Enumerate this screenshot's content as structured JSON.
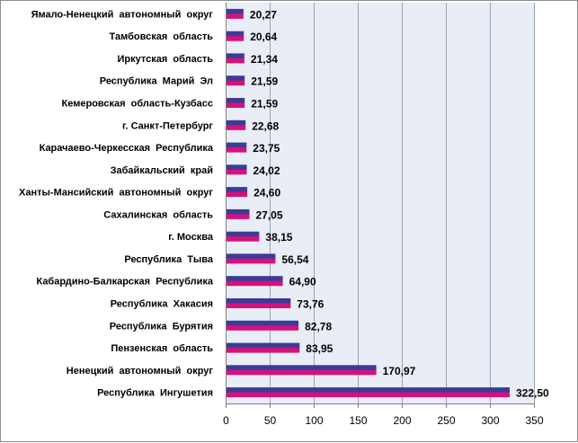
{
  "chart_data": {
    "type": "bar",
    "orientation": "horizontal",
    "categories": [
      "Ямало-Ненецкий  автономный  округ",
      "Тамбовская  область",
      "Иркутская  область",
      "Республика  Марий  Эл",
      "Кемеровская  область-Кузбасс",
      "г. Санкт-Петербург",
      "Карачаево-Черкесская  Республика",
      "Забайкальский  край",
      "Ханты-Мансийский  автономный  округ",
      "Сахалинская  область",
      "г. Москва",
      "Республика  Тыва",
      "Кабардино-Балкарская  Республика",
      "Республика  Хакасия",
      "Республика  Бурятия",
      "Пензенская  область",
      "Ненецкий  автономный  округ",
      "Республика  Ингушетия"
    ],
    "values": [
      20.27,
      20.64,
      21.34,
      21.59,
      21.59,
      22.68,
      23.75,
      24.02,
      24.6,
      27.05,
      38.15,
      56.54,
      64.9,
      73.76,
      82.78,
      83.95,
      170.97,
      322.5
    ],
    "value_labels": [
      "20,27",
      "20,64",
      "21,34",
      "21,59",
      "21,59",
      "22,68",
      "23,75",
      "24,02",
      "24,60",
      "27,05",
      "38,15",
      "56,54",
      "64,90",
      "73,76",
      "82,78",
      "83,95",
      "170,97",
      "322,50"
    ],
    "xlim": [
      0,
      350
    ],
    "xticks": [
      0,
      50,
      100,
      150,
      200,
      250,
      300,
      350
    ],
    "grid": true,
    "colors": {
      "plot_background": "#e9edf5",
      "grid": "#9aa3b5",
      "bar_top": "#3b3c99",
      "bar_bottom": "#d8107a",
      "axis": "#808080"
    }
  }
}
